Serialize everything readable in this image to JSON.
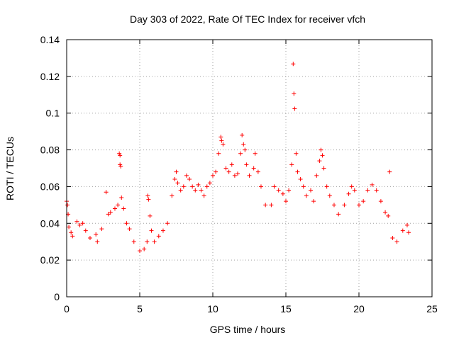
{
  "chart_data": {
    "type": "scatter",
    "title": "Day 303 of 2022, Rate Of TEC Index for receiver vfch",
    "xlabel": "GPS time / hours",
    "ylabel": "ROTI / TECUs",
    "xlim": [
      0,
      25
    ],
    "ylim": [
      0,
      0.14
    ],
    "x_ticks": [
      0,
      5,
      10,
      15,
      20,
      25
    ],
    "x_tick_labels": [
      "0",
      "5",
      "10",
      "15",
      "20",
      "25"
    ],
    "y_ticks": [
      0,
      0.02,
      0.04,
      0.06,
      0.08,
      0.1,
      0.12,
      0.14
    ],
    "y_tick_labels": [
      "0",
      "0.02",
      "0.04",
      "0.06",
      "0.08",
      "0.1",
      "0.12",
      "0.14"
    ],
    "grid": true,
    "legend": "none",
    "marker": "+",
    "color": "#ff0000",
    "series": [
      {
        "values": [
          [
            0.0,
            0.052
          ],
          [
            0.05,
            0.05
          ],
          [
            0.1,
            0.045
          ],
          [
            0.15,
            0.038
          ],
          [
            0.3,
            0.035
          ],
          [
            0.4,
            0.033
          ],
          [
            0.7,
            0.041
          ],
          [
            0.9,
            0.039
          ],
          [
            1.1,
            0.04
          ],
          [
            1.3,
            0.036
          ],
          [
            1.6,
            0.032
          ],
          [
            2.0,
            0.034
          ],
          [
            2.1,
            0.03
          ],
          [
            2.4,
            0.037
          ],
          [
            2.7,
            0.057
          ],
          [
            2.85,
            0.045
          ],
          [
            3.0,
            0.046
          ],
          [
            3.3,
            0.048
          ],
          [
            3.5,
            0.05
          ],
          [
            3.6,
            0.078
          ],
          [
            3.65,
            0.077
          ],
          [
            3.65,
            0.072
          ],
          [
            3.7,
            0.071
          ],
          [
            3.75,
            0.054
          ],
          [
            3.9,
            0.048
          ],
          [
            4.1,
            0.04
          ],
          [
            4.3,
            0.037
          ],
          [
            4.6,
            0.03
          ],
          [
            5.0,
            0.025
          ],
          [
            5.3,
            0.026
          ],
          [
            5.5,
            0.03
          ],
          [
            5.55,
            0.055
          ],
          [
            5.6,
            0.053
          ],
          [
            5.7,
            0.044
          ],
          [
            5.8,
            0.036
          ],
          [
            6.0,
            0.03
          ],
          [
            6.3,
            0.033
          ],
          [
            6.6,
            0.036
          ],
          [
            6.9,
            0.04
          ],
          [
            7.2,
            0.055
          ],
          [
            7.4,
            0.064
          ],
          [
            7.5,
            0.068
          ],
          [
            7.6,
            0.062
          ],
          [
            7.8,
            0.058
          ],
          [
            8.0,
            0.06
          ],
          [
            8.2,
            0.066
          ],
          [
            8.4,
            0.064
          ],
          [
            8.6,
            0.06
          ],
          [
            8.8,
            0.058
          ],
          [
            9.0,
            0.061
          ],
          [
            9.2,
            0.058
          ],
          [
            9.4,
            0.055
          ],
          [
            9.6,
            0.06
          ],
          [
            9.8,
            0.062
          ],
          [
            10.0,
            0.066
          ],
          [
            10.2,
            0.068
          ],
          [
            10.4,
            0.078
          ],
          [
            10.55,
            0.087
          ],
          [
            10.6,
            0.085
          ],
          [
            10.7,
            0.083
          ],
          [
            10.9,
            0.07
          ],
          [
            11.1,
            0.068
          ],
          [
            11.3,
            0.072
          ],
          [
            11.5,
            0.066
          ],
          [
            11.7,
            0.067
          ],
          [
            11.9,
            0.078
          ],
          [
            12.0,
            0.088
          ],
          [
            12.1,
            0.083
          ],
          [
            12.2,
            0.08
          ],
          [
            12.3,
            0.072
          ],
          [
            12.5,
            0.066
          ],
          [
            12.8,
            0.07
          ],
          [
            12.9,
            0.078
          ],
          [
            13.1,
            0.068
          ],
          [
            13.3,
            0.06
          ],
          [
            13.6,
            0.05
          ],
          [
            14.0,
            0.05
          ],
          [
            14.2,
            0.06
          ],
          [
            14.5,
            0.058
          ],
          [
            14.8,
            0.056
          ],
          [
            15.0,
            0.052
          ],
          [
            15.2,
            0.058
          ],
          [
            15.4,
            0.072
          ],
          [
            15.5,
            0.1268
          ],
          [
            15.55,
            0.1106
          ],
          [
            15.6,
            0.1024
          ],
          [
            15.7,
            0.078
          ],
          [
            15.8,
            0.068
          ],
          [
            16.0,
            0.064
          ],
          [
            16.2,
            0.06
          ],
          [
            16.4,
            0.055
          ],
          [
            16.7,
            0.058
          ],
          [
            16.9,
            0.052
          ],
          [
            17.1,
            0.066
          ],
          [
            17.3,
            0.074
          ],
          [
            17.4,
            0.08
          ],
          [
            17.5,
            0.077
          ],
          [
            17.6,
            0.07
          ],
          [
            17.8,
            0.06
          ],
          [
            18.0,
            0.055
          ],
          [
            18.3,
            0.05
          ],
          [
            18.6,
            0.045
          ],
          [
            19.0,
            0.05
          ],
          [
            19.3,
            0.056
          ],
          [
            19.5,
            0.06
          ],
          [
            19.7,
            0.058
          ],
          [
            20.0,
            0.05
          ],
          [
            20.3,
            0.052
          ],
          [
            20.6,
            0.058
          ],
          [
            20.9,
            0.061
          ],
          [
            21.2,
            0.058
          ],
          [
            21.5,
            0.052
          ],
          [
            21.8,
            0.046
          ],
          [
            22.0,
            0.044
          ],
          [
            22.1,
            0.068
          ],
          [
            22.3,
            0.032
          ],
          [
            22.6,
            0.03
          ],
          [
            23.0,
            0.036
          ],
          [
            23.3,
            0.039
          ],
          [
            23.4,
            0.035
          ]
        ]
      }
    ]
  }
}
